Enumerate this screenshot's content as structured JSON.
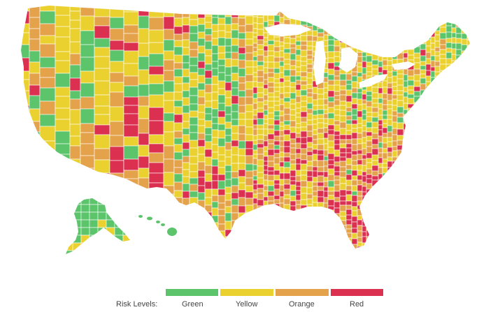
{
  "legend": {
    "title": "Risk Levels:",
    "items": [
      {
        "label": "Green",
        "color": "#5cc46b"
      },
      {
        "label": "Yellow",
        "color": "#ead12f"
      },
      {
        "label": "Orange",
        "color": "#e4a24b"
      },
      {
        "label": "Red",
        "color": "#db3050"
      }
    ]
  },
  "colors": {
    "background": "#ffffff",
    "county_border": "#ffffff"
  }
}
